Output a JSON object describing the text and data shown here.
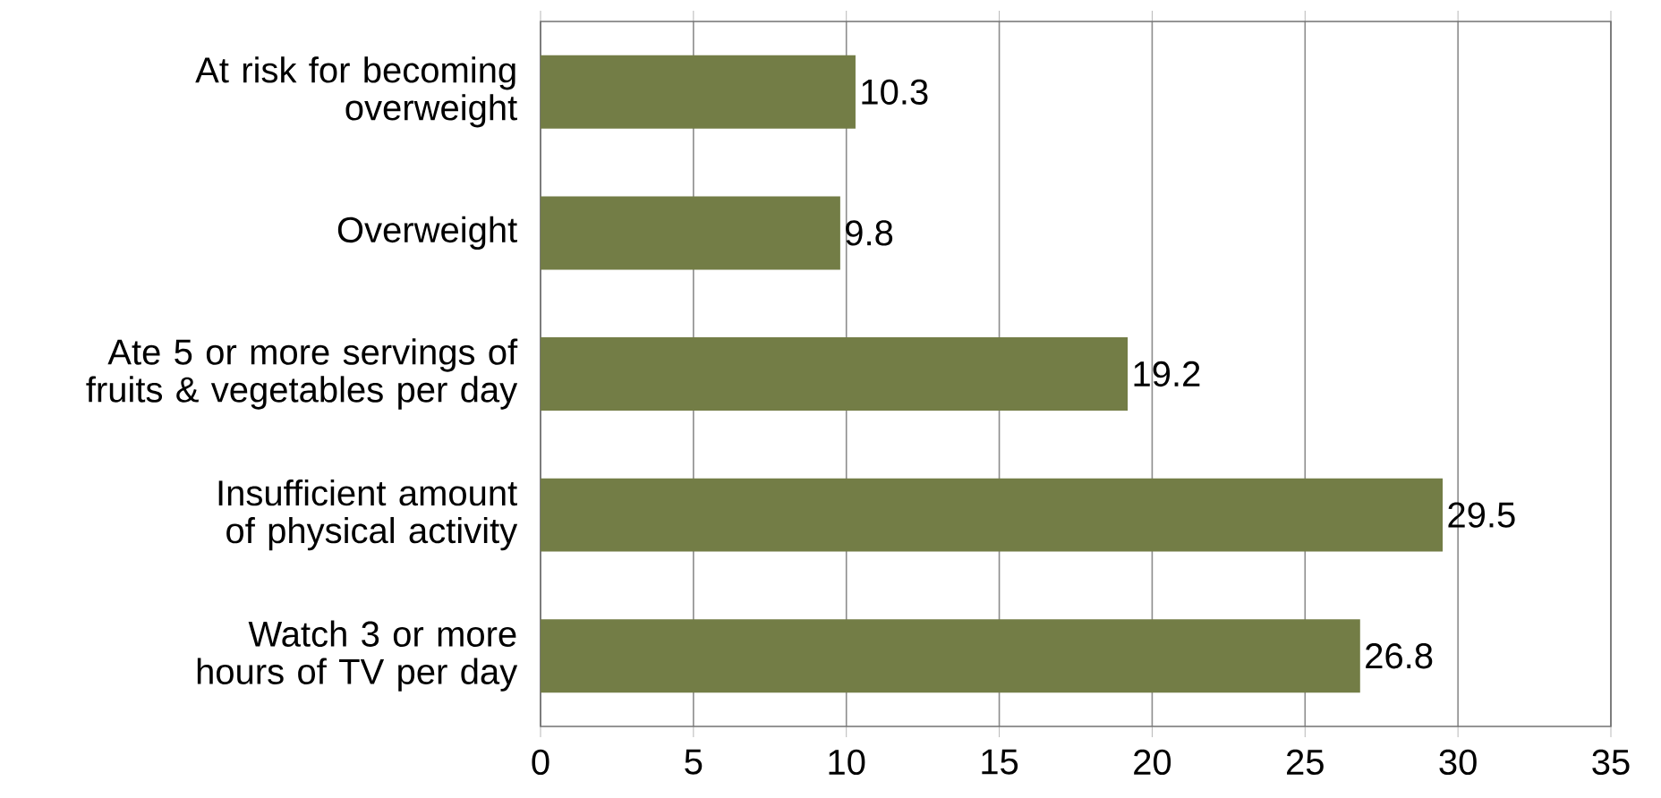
{
  "chart_data": {
    "type": "bar",
    "orientation": "horizontal",
    "categories": [
      "At risk for becoming overweight",
      "Overweight",
      "Ate 5 or more servings of fruits & vegetables per day",
      "Insufficient amount of physical activity",
      "Watch 3 or more hours of TV per day"
    ],
    "values": [
      10.3,
      9.8,
      19.2,
      29.5,
      26.8
    ],
    "color": "#737d46",
    "xlim": [
      0,
      35
    ],
    "xticks": [
      0,
      5,
      10,
      15,
      20,
      25,
      30,
      35
    ],
    "grid": "x",
    "data_labels": true
  }
}
